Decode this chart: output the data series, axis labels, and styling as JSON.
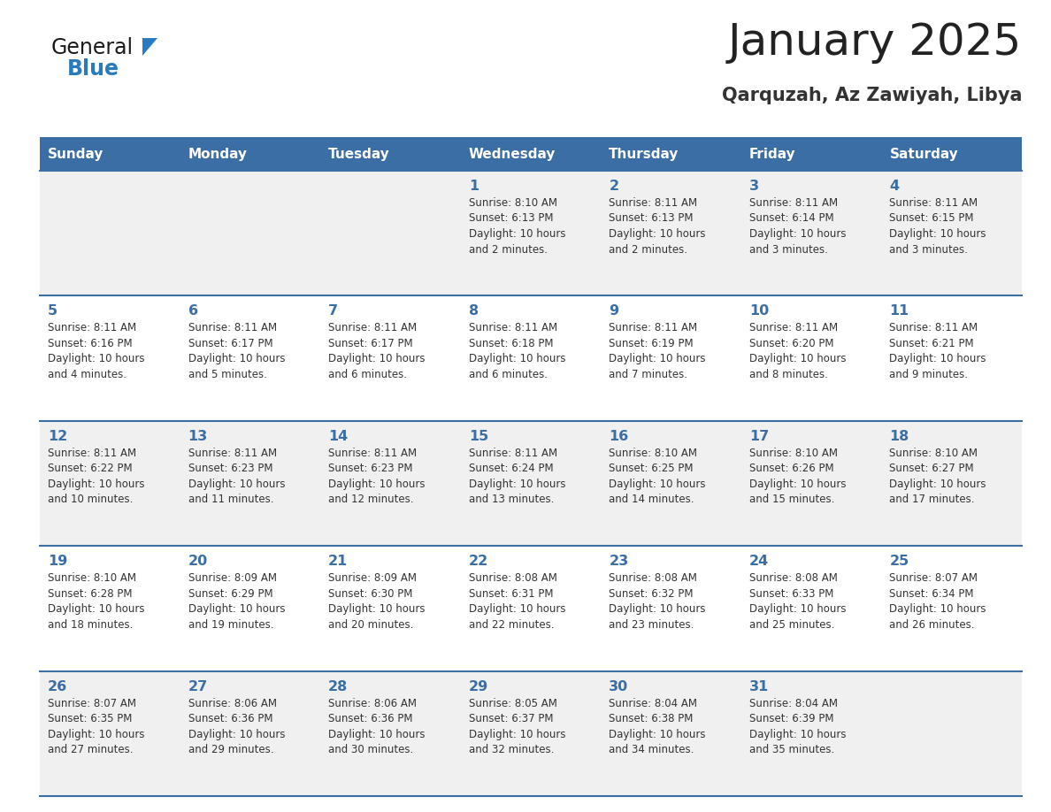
{
  "title": "January 2025",
  "subtitle": "Qarquzah, Az Zawiyah, Libya",
  "days_of_week": [
    "Sunday",
    "Monday",
    "Tuesday",
    "Wednesday",
    "Thursday",
    "Friday",
    "Saturday"
  ],
  "header_bg_color": "#3a6ea5",
  "header_text_color": "#ffffff",
  "cell_bg_even": "#f0f0f0",
  "cell_bg_odd": "#ffffff",
  "cell_text_color": "#333333",
  "grid_line_color": "#3a6ea5",
  "title_color": "#222222",
  "subtitle_color": "#333333",
  "logo_general_color": "#1a1a1a",
  "logo_blue_color": "#2a7abf",
  "calendar_data": [
    [
      null,
      null,
      null,
      {
        "day": 1,
        "sunrise": "8:10 AM",
        "sunset": "6:13 PM",
        "daylight": "10 hours",
        "daylight2": "and 2 minutes."
      },
      {
        "day": 2,
        "sunrise": "8:11 AM",
        "sunset": "6:13 PM",
        "daylight": "10 hours",
        "daylight2": "and 2 minutes."
      },
      {
        "day": 3,
        "sunrise": "8:11 AM",
        "sunset": "6:14 PM",
        "daylight": "10 hours",
        "daylight2": "and 3 minutes."
      },
      {
        "day": 4,
        "sunrise": "8:11 AM",
        "sunset": "6:15 PM",
        "daylight": "10 hours",
        "daylight2": "and 3 minutes."
      }
    ],
    [
      {
        "day": 5,
        "sunrise": "8:11 AM",
        "sunset": "6:16 PM",
        "daylight": "10 hours",
        "daylight2": "and 4 minutes."
      },
      {
        "day": 6,
        "sunrise": "8:11 AM",
        "sunset": "6:17 PM",
        "daylight": "10 hours",
        "daylight2": "and 5 minutes."
      },
      {
        "day": 7,
        "sunrise": "8:11 AM",
        "sunset": "6:17 PM",
        "daylight": "10 hours",
        "daylight2": "and 6 minutes."
      },
      {
        "day": 8,
        "sunrise": "8:11 AM",
        "sunset": "6:18 PM",
        "daylight": "10 hours",
        "daylight2": "and 6 minutes."
      },
      {
        "day": 9,
        "sunrise": "8:11 AM",
        "sunset": "6:19 PM",
        "daylight": "10 hours",
        "daylight2": "and 7 minutes."
      },
      {
        "day": 10,
        "sunrise": "8:11 AM",
        "sunset": "6:20 PM",
        "daylight": "10 hours",
        "daylight2": "and 8 minutes."
      },
      {
        "day": 11,
        "sunrise": "8:11 AM",
        "sunset": "6:21 PM",
        "daylight": "10 hours",
        "daylight2": "and 9 minutes."
      }
    ],
    [
      {
        "day": 12,
        "sunrise": "8:11 AM",
        "sunset": "6:22 PM",
        "daylight": "10 hours",
        "daylight2": "and 10 minutes."
      },
      {
        "day": 13,
        "sunrise": "8:11 AM",
        "sunset": "6:23 PM",
        "daylight": "10 hours",
        "daylight2": "and 11 minutes."
      },
      {
        "day": 14,
        "sunrise": "8:11 AM",
        "sunset": "6:23 PM",
        "daylight": "10 hours",
        "daylight2": "and 12 minutes."
      },
      {
        "day": 15,
        "sunrise": "8:11 AM",
        "sunset": "6:24 PM",
        "daylight": "10 hours",
        "daylight2": "and 13 minutes."
      },
      {
        "day": 16,
        "sunrise": "8:10 AM",
        "sunset": "6:25 PM",
        "daylight": "10 hours",
        "daylight2": "and 14 minutes."
      },
      {
        "day": 17,
        "sunrise": "8:10 AM",
        "sunset": "6:26 PM",
        "daylight": "10 hours",
        "daylight2": "and 15 minutes."
      },
      {
        "day": 18,
        "sunrise": "8:10 AM",
        "sunset": "6:27 PM",
        "daylight": "10 hours",
        "daylight2": "and 17 minutes."
      }
    ],
    [
      {
        "day": 19,
        "sunrise": "8:10 AM",
        "sunset": "6:28 PM",
        "daylight": "10 hours",
        "daylight2": "and 18 minutes."
      },
      {
        "day": 20,
        "sunrise": "8:09 AM",
        "sunset": "6:29 PM",
        "daylight": "10 hours",
        "daylight2": "and 19 minutes."
      },
      {
        "day": 21,
        "sunrise": "8:09 AM",
        "sunset": "6:30 PM",
        "daylight": "10 hours",
        "daylight2": "and 20 minutes."
      },
      {
        "day": 22,
        "sunrise": "8:08 AM",
        "sunset": "6:31 PM",
        "daylight": "10 hours",
        "daylight2": "and 22 minutes."
      },
      {
        "day": 23,
        "sunrise": "8:08 AM",
        "sunset": "6:32 PM",
        "daylight": "10 hours",
        "daylight2": "and 23 minutes."
      },
      {
        "day": 24,
        "sunrise": "8:08 AM",
        "sunset": "6:33 PM",
        "daylight": "10 hours",
        "daylight2": "and 25 minutes."
      },
      {
        "day": 25,
        "sunrise": "8:07 AM",
        "sunset": "6:34 PM",
        "daylight": "10 hours",
        "daylight2": "and 26 minutes."
      }
    ],
    [
      {
        "day": 26,
        "sunrise": "8:07 AM",
        "sunset": "6:35 PM",
        "daylight": "10 hours",
        "daylight2": "and 27 minutes."
      },
      {
        "day": 27,
        "sunrise": "8:06 AM",
        "sunset": "6:36 PM",
        "daylight": "10 hours",
        "daylight2": "and 29 minutes."
      },
      {
        "day": 28,
        "sunrise": "8:06 AM",
        "sunset": "6:36 PM",
        "daylight": "10 hours",
        "daylight2": "and 30 minutes."
      },
      {
        "day": 29,
        "sunrise": "8:05 AM",
        "sunset": "6:37 PM",
        "daylight": "10 hours",
        "daylight2": "and 32 minutes."
      },
      {
        "day": 30,
        "sunrise": "8:04 AM",
        "sunset": "6:38 PM",
        "daylight": "10 hours",
        "daylight2": "and 34 minutes."
      },
      {
        "day": 31,
        "sunrise": "8:04 AM",
        "sunset": "6:39 PM",
        "daylight": "10 hours",
        "daylight2": "and 35 minutes."
      },
      null
    ]
  ]
}
